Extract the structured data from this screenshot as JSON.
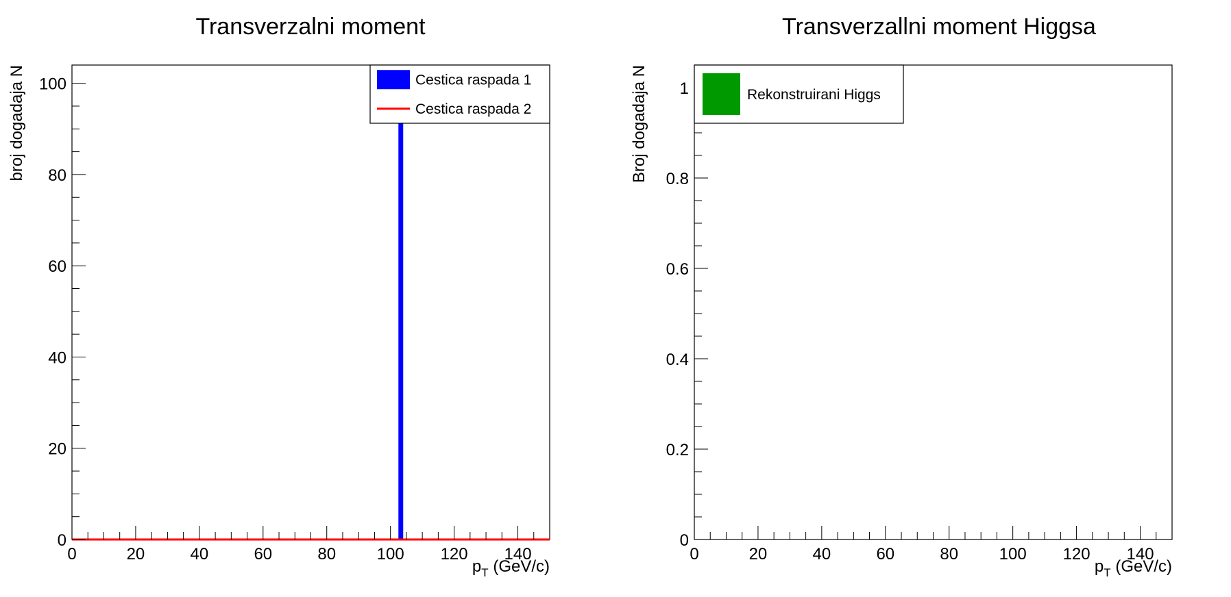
{
  "chart_data": [
    {
      "type": "bar",
      "title": "Transverzalni moment",
      "xlabel_main": "p",
      "xlabel_sub": "T",
      "xlabel_unit": "(GeV/c)",
      "ylabel": "broj dogadaja N",
      "xlim": [
        0,
        150
      ],
      "ylim": [
        0,
        104
      ],
      "xticks": [
        "0",
        "20",
        "40",
        "60",
        "80",
        "100",
        "120",
        "140"
      ],
      "yticks": [
        "0",
        "20",
        "40",
        "60",
        "80",
        "100"
      ],
      "grid": false,
      "legend_position": "top-right",
      "series": [
        {
          "name": "Cestica raspada 1",
          "style": "fill",
          "color": "#0000ff",
          "bins": [
            {
              "x0": 102.5,
              "x1": 104.0,
              "y": 100
            }
          ]
        },
        {
          "name": "Cestica raspada 2",
          "style": "line",
          "color": "#ff0000",
          "bins": [
            {
              "x0": 0,
              "x1": 150,
              "y": 0
            }
          ]
        }
      ]
    },
    {
      "type": "bar",
      "title": "Transverzallni moment Higgsa",
      "xlabel_main": "p",
      "xlabel_sub": "T",
      "xlabel_unit": "(GeV/c)",
      "ylabel": "Broj dogadaja N",
      "xlim": [
        0,
        150
      ],
      "ylim": [
        0,
        1.05
      ],
      "xticks": [
        "0",
        "20",
        "40",
        "60",
        "80",
        "100",
        "120",
        "140"
      ],
      "yticks": [
        "0",
        "0.2",
        "0.4",
        "0.6",
        "0.8",
        "1"
      ],
      "grid": false,
      "legend_position": "top-left",
      "series": [
        {
          "name": "Rekonstruirani Higgs",
          "style": "fill",
          "color": "#009900",
          "bins": []
        }
      ]
    }
  ]
}
